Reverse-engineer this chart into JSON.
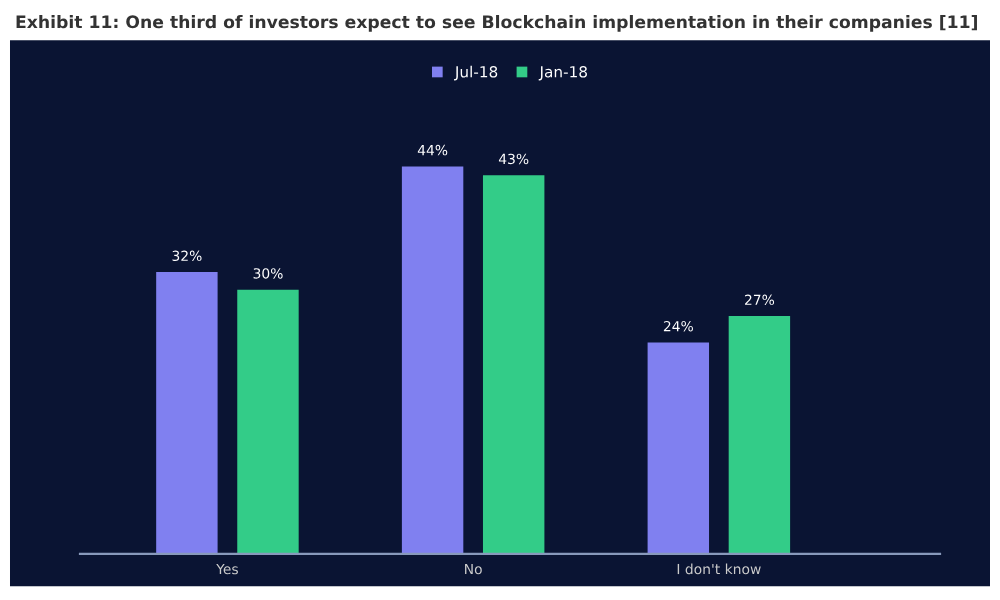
{
  "chart_data": {
    "type": "bar",
    "title": "Exhibit 11: One third of investors expect to see Blockchain implementation in their companies [11]",
    "categories": [
      "Yes",
      "No",
      "I don't know"
    ],
    "series": [
      {
        "name": "Jul-18",
        "color": "#8080f0",
        "values": [
          32,
          44,
          24
        ],
        "value_labels": [
          "32%",
          "44%",
          "24%"
        ]
      },
      {
        "name": "Jan-18",
        "color": "#33cc88",
        "values": [
          30,
          43,
          27
        ],
        "value_labels": [
          "30%",
          "43%",
          "27%"
        ]
      }
    ],
    "grid": false,
    "legend": "top",
    "tick_labels": "x"
  }
}
